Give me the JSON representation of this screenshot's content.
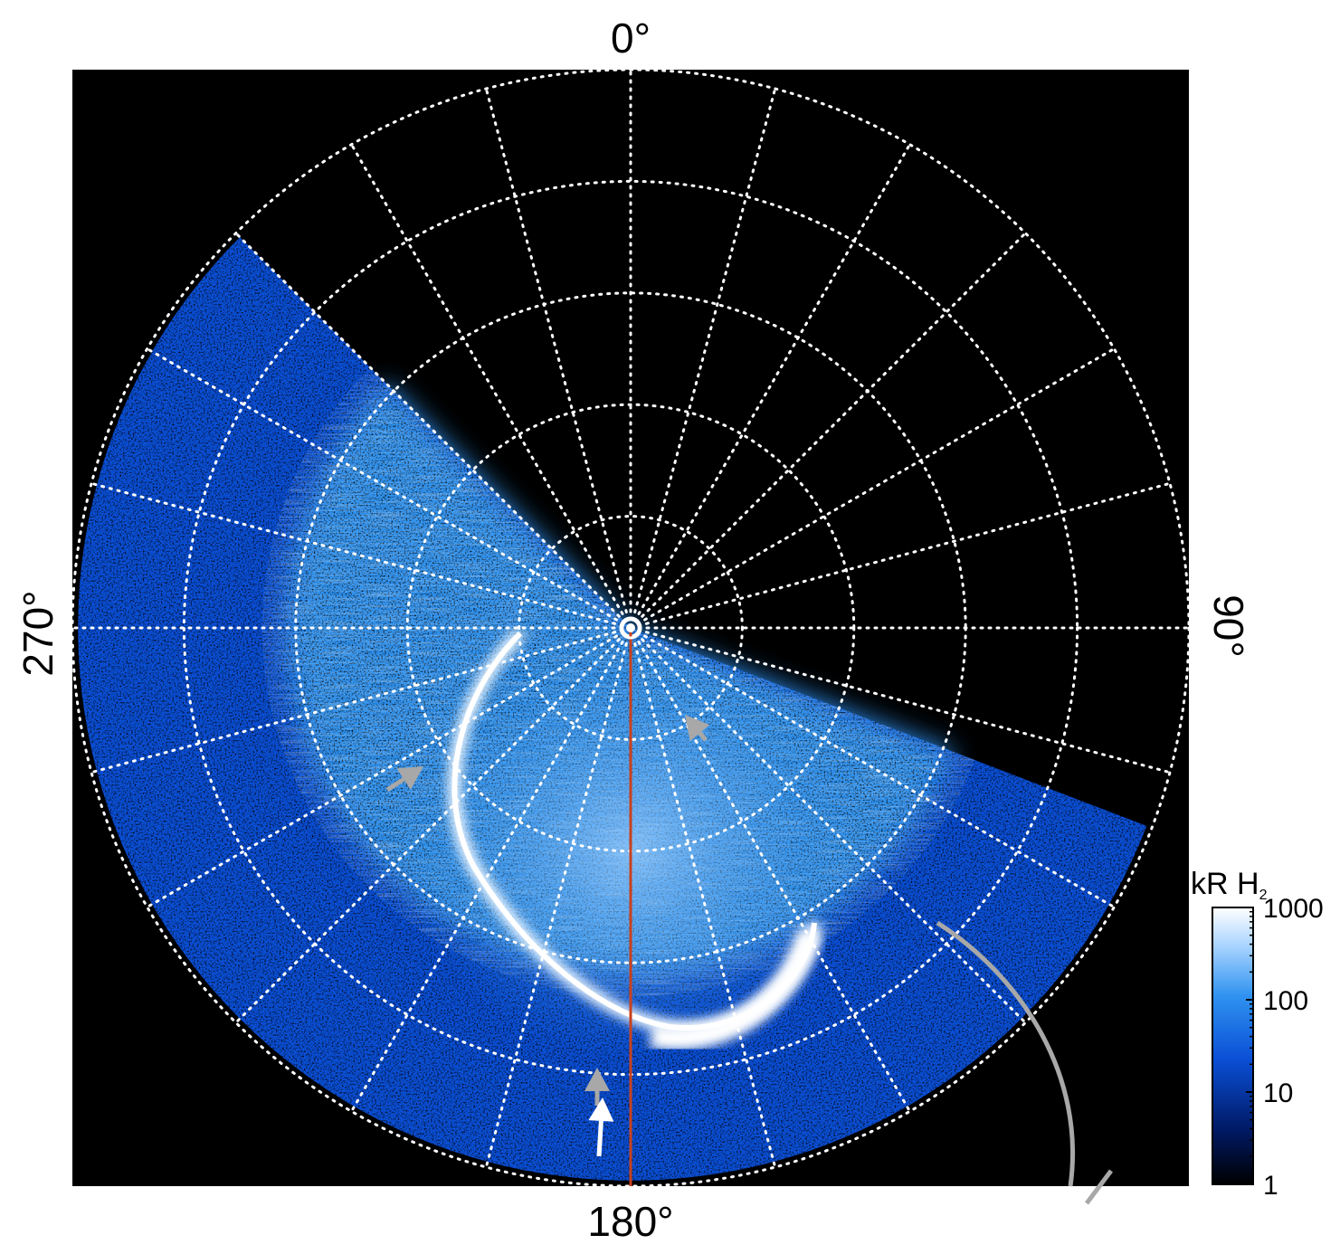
{
  "colors": {
    "background": "#000000",
    "grid": "#ffffff",
    "meridian_line": "#c8411f",
    "arrow_grey": "#a8a8a8",
    "arrow_white": "#ffffff",
    "colormap": [
      "#000000",
      "#001a66",
      "#0a4fd6",
      "#2f92f0",
      "#a8d4ff",
      "#ffffff"
    ]
  },
  "icons": {
    "pole_marker": "concentric-circle",
    "arrows": "arrowhead"
  },
  "chart_data": {
    "type": "heatmap",
    "title": "",
    "projection": "polar",
    "angle_labels": [
      {
        "angle_deg": 0,
        "text": "0",
        "unit": "°"
      },
      {
        "angle_deg": 90,
        "text": "90",
        "unit": "°"
      },
      {
        "angle_deg": 180,
        "text": "180",
        "unit": "°"
      },
      {
        "angle_deg": 270,
        "text": "270",
        "unit": "°"
      }
    ],
    "meridian_spacing_deg": 15,
    "latitude_circles": 5,
    "grid": "dotted",
    "highlighted_meridian_deg": 180,
    "colorbar": {
      "title": "kR H",
      "title_subscript": "2",
      "scale": "log",
      "range": [
        1,
        1000
      ],
      "ticks": [
        "1000",
        "100",
        "10",
        "1"
      ],
      "placement": "right"
    },
    "features": {
      "main_emission_oval": "bright arc, strongest on the 135°–180° side",
      "observed_sector": "about 110°–315° longitude",
      "arrows": [
        {
          "color": "grey",
          "points_toward": "oval, near 240°"
        },
        {
          "color": "grey",
          "points_toward": "pole, near 150°"
        },
        {
          "color": "grey",
          "points_toward": "oval, near 180°"
        },
        {
          "color": "white",
          "points_toward": "oval, near 180°"
        }
      ]
    }
  }
}
